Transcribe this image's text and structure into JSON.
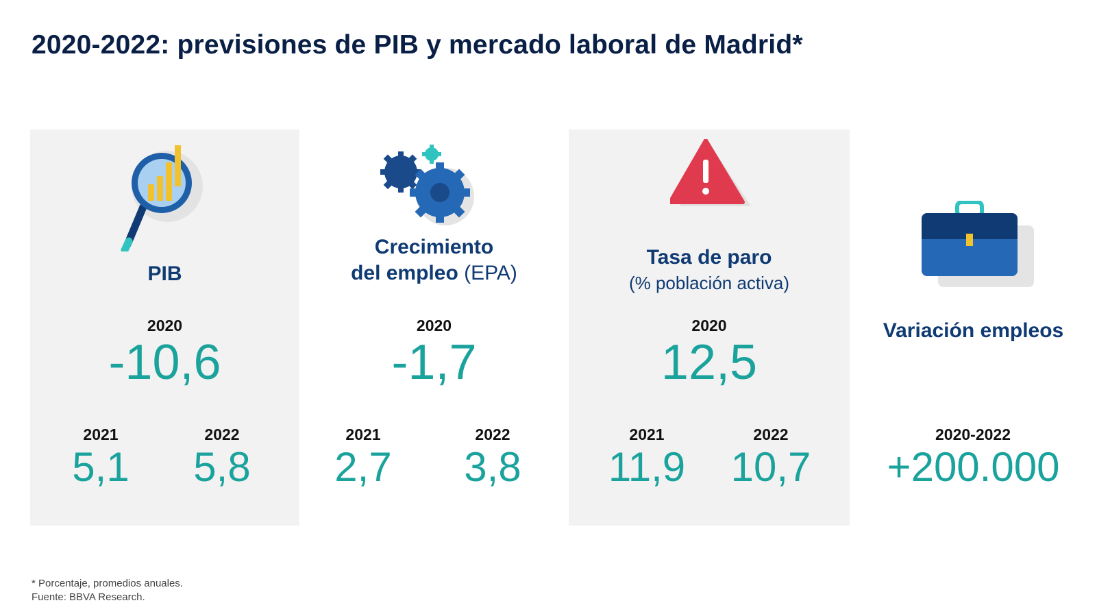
{
  "title": "2020-2022: previsiones de PIB y mercado laboral de Madrid*",
  "panels": {
    "pib": {
      "heading": "PIB",
      "main_year": "2020",
      "main_value": "-10,6",
      "sub": [
        {
          "year": "2021",
          "value": "5,1"
        },
        {
          "year": "2022",
          "value": "5,8"
        }
      ]
    },
    "empleo": {
      "heading_line1": "Crecimiento",
      "heading_line2_bold": "del empleo",
      "heading_line2_light": "(EPA)",
      "main_year": "2020",
      "main_value": "-1,7",
      "sub": [
        {
          "year": "2021",
          "value": "2,7"
        },
        {
          "year": "2022",
          "value": "3,8"
        }
      ]
    },
    "paro": {
      "heading": "Tasa de paro",
      "subheading": "(% población activa)",
      "main_year": "2020",
      "main_value": "12,5",
      "sub": [
        {
          "year": "2021",
          "value": "11,9"
        },
        {
          "year": "2022",
          "value": "10,7"
        }
      ]
    },
    "variacion": {
      "heading": "Variación empleos",
      "period": "2020-2022",
      "value": "+200.000"
    }
  },
  "footnote": {
    "line1": "* Porcentaje, promedios anuales.",
    "line2": "Fuente: BBVA Research."
  },
  "icons": {
    "pib": "magnifier-chart-icon",
    "empleo": "gears-icon",
    "paro": "warning-icon",
    "variacion": "briefcase-icon"
  },
  "colors": {
    "title": "#0a1f45",
    "heading": "#0f3a73",
    "value": "#1aa29c",
    "panel_bg": "#f2f2f2",
    "warning": "#e03a4f"
  }
}
